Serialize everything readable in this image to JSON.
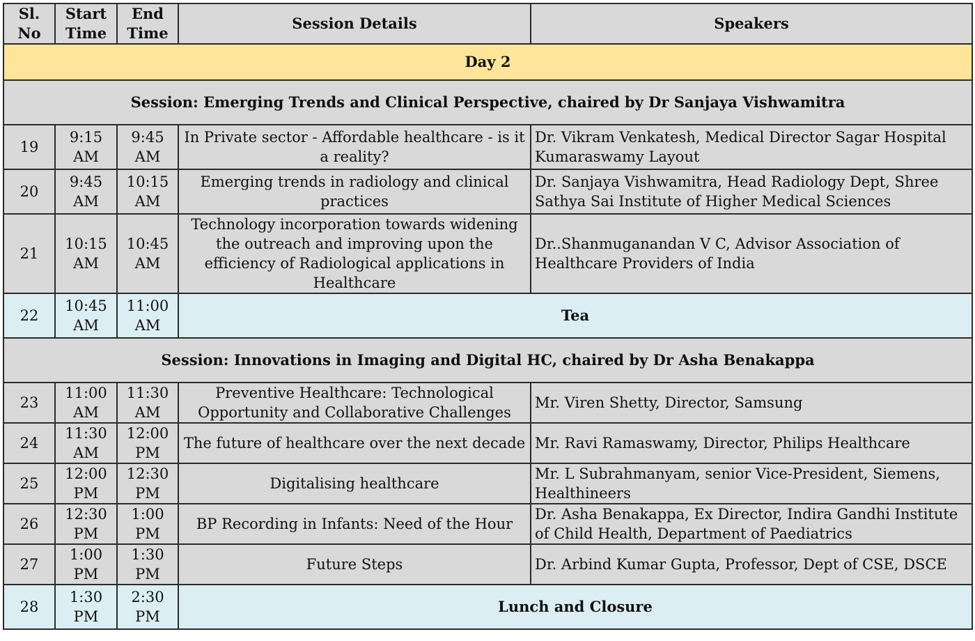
{
  "headers": {
    "sl_no": "Sl. No",
    "start_time": "Start Time",
    "end_time": "End Time",
    "session_details": "Session Details",
    "speakers": "Speakers"
  },
  "day_label": "Day 2",
  "session_1": "Session: Emerging Trends and Clinical Perspective, chaired by Dr Sanjaya Vishwamitra",
  "session_2": "Session: Innovations in Imaging and Digital HC, chaired by Dr Asha Benakappa",
  "rows": [
    {
      "sl": "19",
      "start": "9:15 AM",
      "end": "9:45 AM",
      "details": "In Private sector - Affordable healthcare - is it a reality?",
      "speaker": "Dr. Vikram Venkatesh, Medical Director Sagar Hospital Kumaraswamy Layout"
    },
    {
      "sl": "20",
      "start": "9:45 AM",
      "end": "10:15 AM",
      "details": "Emerging trends in radiology and clinical practices",
      "speaker": "Dr. Sanjaya Vishwamitra, Head Radiology Dept, Shree Sathya Sai Institute of Higher Medical Sciences"
    },
    {
      "sl": "21",
      "start": "10:15 AM",
      "end": "10:45 AM",
      "details": "Technology incorporation towards widening the outreach and improving upon the efficiency of Radiological applications in Healthcare",
      "speaker": "Dr..Shanmuganandan V C, Advisor Association of Healthcare Providers of India"
    },
    {
      "sl": "22",
      "start": "10:45 AM",
      "end": "11:00 AM",
      "details": "Tea"
    },
    {
      "sl": "23",
      "start": "11:00 AM",
      "end": "11:30 AM",
      "details": "Preventive Healthcare: Technological Opportunity and Collaborative Challenges",
      "speaker": "Mr. Viren Shetty, Director, Samsung"
    },
    {
      "sl": "24",
      "start": "11:30 AM",
      "end": "12:00 PM",
      "details": "The future of healthcare over the next decade",
      "speaker": "Mr. Ravi Ramaswamy, Director, Philips Healthcare"
    },
    {
      "sl": "25",
      "start": "12:00 PM",
      "end": "12:30 PM",
      "details": "Digitalising healthcare",
      "speaker": "Mr. L Subrahmanyam, senior Vice-President, Siemens, Healthineers"
    },
    {
      "sl": "26",
      "start": "12:30 PM",
      "end": "1:00 PM",
      "details": "BP Recording in Infants: Need of the Hour",
      "speaker": "Dr. Asha Benakappa, Ex Director, Indira Gandhi Institute of Child Health, Department of Paediatrics"
    },
    {
      "sl": "27",
      "start": "1:00 PM",
      "end": "1:30 PM",
      "details": "Future Steps",
      "speaker": "Dr. Arbind Kumar Gupta, Professor, Dept of CSE, DSCE"
    },
    {
      "sl": "28",
      "start": "1:30 PM",
      "end": "2:30 PM",
      "details": "Lunch and Closure"
    }
  ],
  "colors": {
    "header_bg": "#d9d9d9",
    "day_bg": "#ffe599",
    "break_bg": "#dbeef3",
    "border": "#2b2b2b"
  }
}
